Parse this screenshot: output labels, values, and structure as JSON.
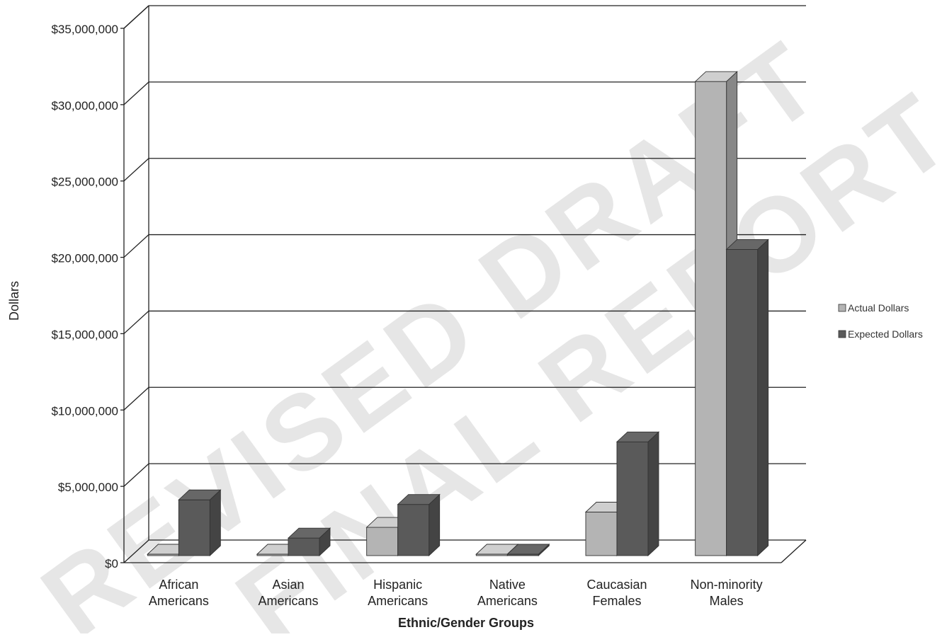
{
  "watermark": {
    "line1": "REVISED DRAFT",
    "line2": "FINAL REPORT"
  },
  "colors": {
    "actual": "#b4b4b4",
    "expected": "#5a5a5a",
    "gridline": "#222222",
    "watermark": "#e6e6e6"
  },
  "chart_data": {
    "type": "bar",
    "title": "",
    "xlabel": "Ethnic/Gender Groups",
    "ylabel": "Dollars",
    "ylim": [
      0,
      35000000
    ],
    "yticks": [
      0,
      5000000,
      10000000,
      15000000,
      20000000,
      25000000,
      30000000,
      35000000
    ],
    "ytick_labels": [
      "$0",
      "$5,000,000",
      "$10,000,000",
      "$15,000,000",
      "$20,000,000",
      "$25,000,000",
      "$30,000,000",
      "$35,000,000"
    ],
    "grid": true,
    "legend_position": "right",
    "categories": [
      [
        "African",
        "Americans"
      ],
      [
        "Asian",
        "Americans"
      ],
      [
        "Hispanic",
        "Americans"
      ],
      [
        "Native",
        "Americans"
      ],
      [
        "Caucasian",
        "Females"
      ],
      [
        "Non-minority",
        "Males"
      ]
    ],
    "series": [
      {
        "name": "Actual Dollars",
        "values": [
          300000,
          150000,
          2500000,
          50000,
          3500000,
          31700000
        ]
      },
      {
        "name": "Expected Dollars",
        "values": [
          4300000,
          1800000,
          4000000,
          100000,
          8100000,
          20700000
        ]
      }
    ]
  }
}
